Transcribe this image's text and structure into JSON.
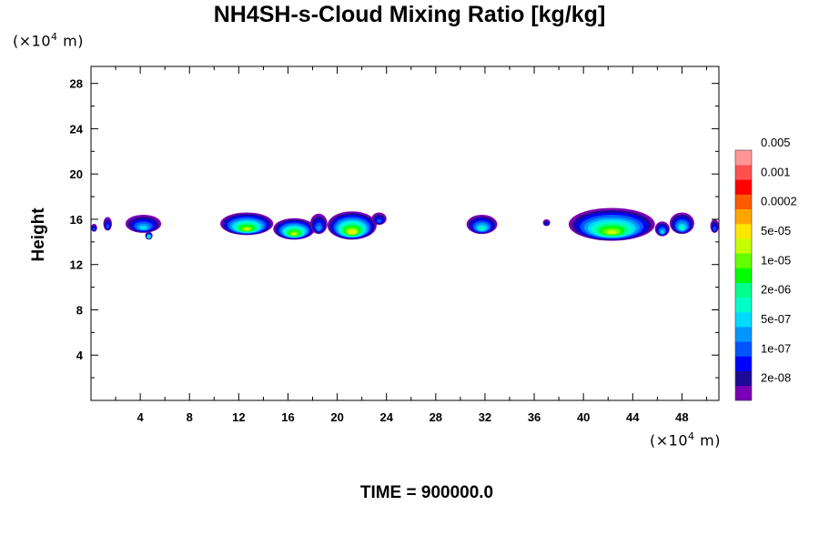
{
  "chart_data": {
    "type": "heatmap",
    "title": "NH4SH-s-Cloud Mixing Ratio [kg/kg]",
    "ylabel": "Height",
    "x_unit_prefix": "(×10",
    "unit_exp": "4",
    "unit_suffix": " m)",
    "y_unit_prefix": "(×10",
    "footer": "TIME = 900000.0",
    "xlim": [
      0,
      51
    ],
    "ylim": [
      0,
      29.5
    ],
    "x_ticks": [
      4,
      8,
      12,
      16,
      20,
      24,
      28,
      32,
      36,
      40,
      44,
      48
    ],
    "y_ticks": [
      4,
      8,
      12,
      16,
      20,
      24,
      28
    ],
    "colorbar": {
      "colors": [
        "#7b00b4",
        "#1c0a96",
        "#0000ff",
        "#0055ff",
        "#0095ff",
        "#00dcff",
        "#00ffc8",
        "#00ff8c",
        "#00ff00",
        "#64ff00",
        "#c8ff00",
        "#ffe600",
        "#ffa500",
        "#ff5a00",
        "#ff0000",
        "#ff5050",
        "#ff9696"
      ],
      "labels": [
        "2e-08",
        "1e-07",
        "5e-07",
        "2e-06",
        "1e-05",
        "5e-05",
        "0.0002",
        "0.001",
        "0.005"
      ]
    },
    "cloud_patches": [
      {
        "x": [
          0,
          0.5
        ],
        "y": [
          14.9,
          15.6
        ],
        "max_level": 3
      },
      {
        "x": [
          1.0,
          1.7
        ],
        "y": [
          15.0,
          16.2
        ],
        "max_level": 3
      },
      {
        "x": [
          2.8,
          5.7
        ],
        "y": [
          14.8,
          16.4
        ],
        "max_level": 5
      },
      {
        "x": [
          4.4,
          5.0
        ],
        "y": [
          14.2,
          14.9
        ],
        "max_level": 8
      },
      {
        "x": [
          10.5,
          14.8
        ],
        "y": [
          14.6,
          16.6
        ],
        "max_level": 10
      },
      {
        "x": [
          14.8,
          18.2
        ],
        "y": [
          14.2,
          16.1
        ],
        "max_level": 10
      },
      {
        "x": [
          17.8,
          19.2
        ],
        "y": [
          14.7,
          16.5
        ],
        "max_level": 4
      },
      {
        "x": [
          19.2,
          23.2
        ],
        "y": [
          14.2,
          16.7
        ],
        "max_level": 11
      },
      {
        "x": [
          22.8,
          24.0
        ],
        "y": [
          15.5,
          16.6
        ],
        "max_level": 3
      },
      {
        "x": [
          30.5,
          33.0
        ],
        "y": [
          14.7,
          16.4
        ],
        "max_level": 6
      },
      {
        "x": [
          36.7,
          37.3
        ],
        "y": [
          15.4,
          16.0
        ],
        "max_level": 2
      },
      {
        "x": [
          38.8,
          45.8
        ],
        "y": [
          14.1,
          17.0
        ],
        "max_level": 10
      },
      {
        "x": [
          45.8,
          47.0
        ],
        "y": [
          14.5,
          15.8
        ],
        "max_level": 5
      },
      {
        "x": [
          47.0,
          49.0
        ],
        "y": [
          14.7,
          16.6
        ],
        "max_level": 6
      },
      {
        "x": [
          50.3,
          51.0
        ],
        "y": [
          14.8,
          16.0
        ],
        "max_level": 3
      }
    ]
  }
}
